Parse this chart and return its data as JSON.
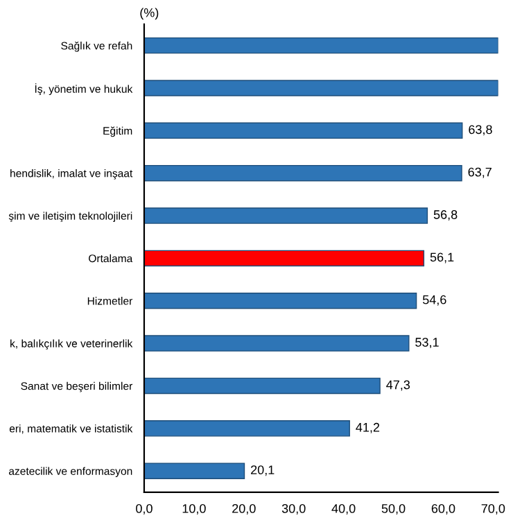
{
  "chart_data": {
    "type": "bar",
    "orientation": "horizontal",
    "annotations": [
      "(%)"
    ],
    "categories": [
      "Sağlık ve refah",
      "İş, yönetim ve hukuk",
      "Eğitim",
      "hendislik, imalat ve inşaat",
      "şim ve iletişim teknolojileri",
      "Ortalama",
      "Hizmetler",
      "k, balıkçılık ve veterinerlik",
      "Sanat ve beşeri bilimler",
      "eri, matematik ve istatistik",
      "azetecilik ve enformasyon"
    ],
    "values": [
      71,
      71,
      63.8,
      63.7,
      56.8,
      56.1,
      54.6,
      53.1,
      47.3,
      41.2,
      20.1
    ],
    "value_labels": [
      null,
      null,
      "63,8",
      "63,7",
      "56,8",
      "56,1",
      "54,6",
      "53,1",
      "47,3",
      "41,2",
      "20,1"
    ],
    "colors": [
      "#2e75b6",
      "#2e75b6",
      "#2e75b6",
      "#2e75b6",
      "#2e75b6",
      "#ff0000",
      "#2e75b6",
      "#2e75b6",
      "#2e75b6",
      "#2e75b6",
      "#2e75b6"
    ],
    "xlim": [
      0,
      71
    ],
    "xticks": [
      {
        "value": 0,
        "label": "0,0"
      },
      {
        "value": 10,
        "label": "10,0"
      },
      {
        "value": 20,
        "label": "20,0"
      },
      {
        "value": 30,
        "label": "30,0"
      },
      {
        "value": 40,
        "label": "40,0"
      },
      {
        "value": 50,
        "label": "50,0"
      },
      {
        "value": 60,
        "label": "60,0"
      },
      {
        "value": 70,
        "label": "70,0"
      }
    ],
    "grid": false,
    "legend": false
  }
}
